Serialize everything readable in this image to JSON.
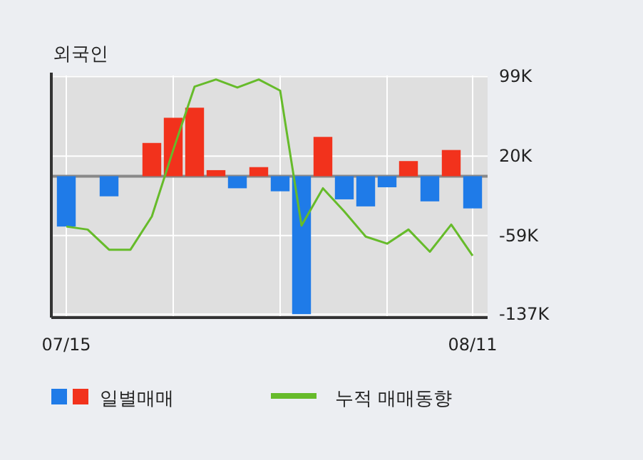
{
  "chart_data": {
    "type": "bar",
    "title": "외국인",
    "categories": [
      "07/15",
      null,
      null,
      null,
      null,
      null,
      null,
      null,
      null,
      null,
      null,
      null,
      null,
      null,
      null,
      null,
      null,
      null,
      null,
      "08/11"
    ],
    "series": [
      {
        "name": "일별매매",
        "colors": [
          "#1f7be8",
          "#1f7be8",
          "#1f7be8",
          "#1f7be8",
          "#f2321c",
          "#f2321c",
          "#f2321c",
          "#f2321c",
          "#1f7be8",
          "#f2321c",
          "#1f7be8",
          "#1f7be8",
          "#f2321c",
          "#1f7be8",
          "#1f7be8",
          "#1f7be8",
          "#f2321c",
          "#1f7be8",
          "#f2321c",
          "#1f7be8"
        ],
        "values": [
          -50,
          0,
          -20,
          0,
          33,
          58,
          68,
          6,
          -12,
          9,
          -15,
          -137,
          39,
          -23,
          -30,
          -11,
          15,
          -25,
          26,
          -32
        ]
      },
      {
        "name": "누적 매매동향",
        "type": "line",
        "color": "#66bb2a",
        "values": [
          -50,
          -53,
          -73,
          -73,
          -40,
          26,
          89,
          96,
          88,
          96,
          85,
          -49,
          -12,
          -35,
          -60,
          -67,
          -53,
          -75,
          -48,
          -79
        ]
      }
    ],
    "ylim": [
      -139,
      100
    ],
    "yticks": [
      {
        "value": 99,
        "label": "99K"
      },
      {
        "value": 20,
        "label": "20K"
      },
      {
        "value": -59,
        "label": "-59K"
      },
      {
        "value": -137,
        "label": "-137K"
      }
    ],
    "grid": true,
    "legend": "bottom",
    "marker": "none"
  }
}
